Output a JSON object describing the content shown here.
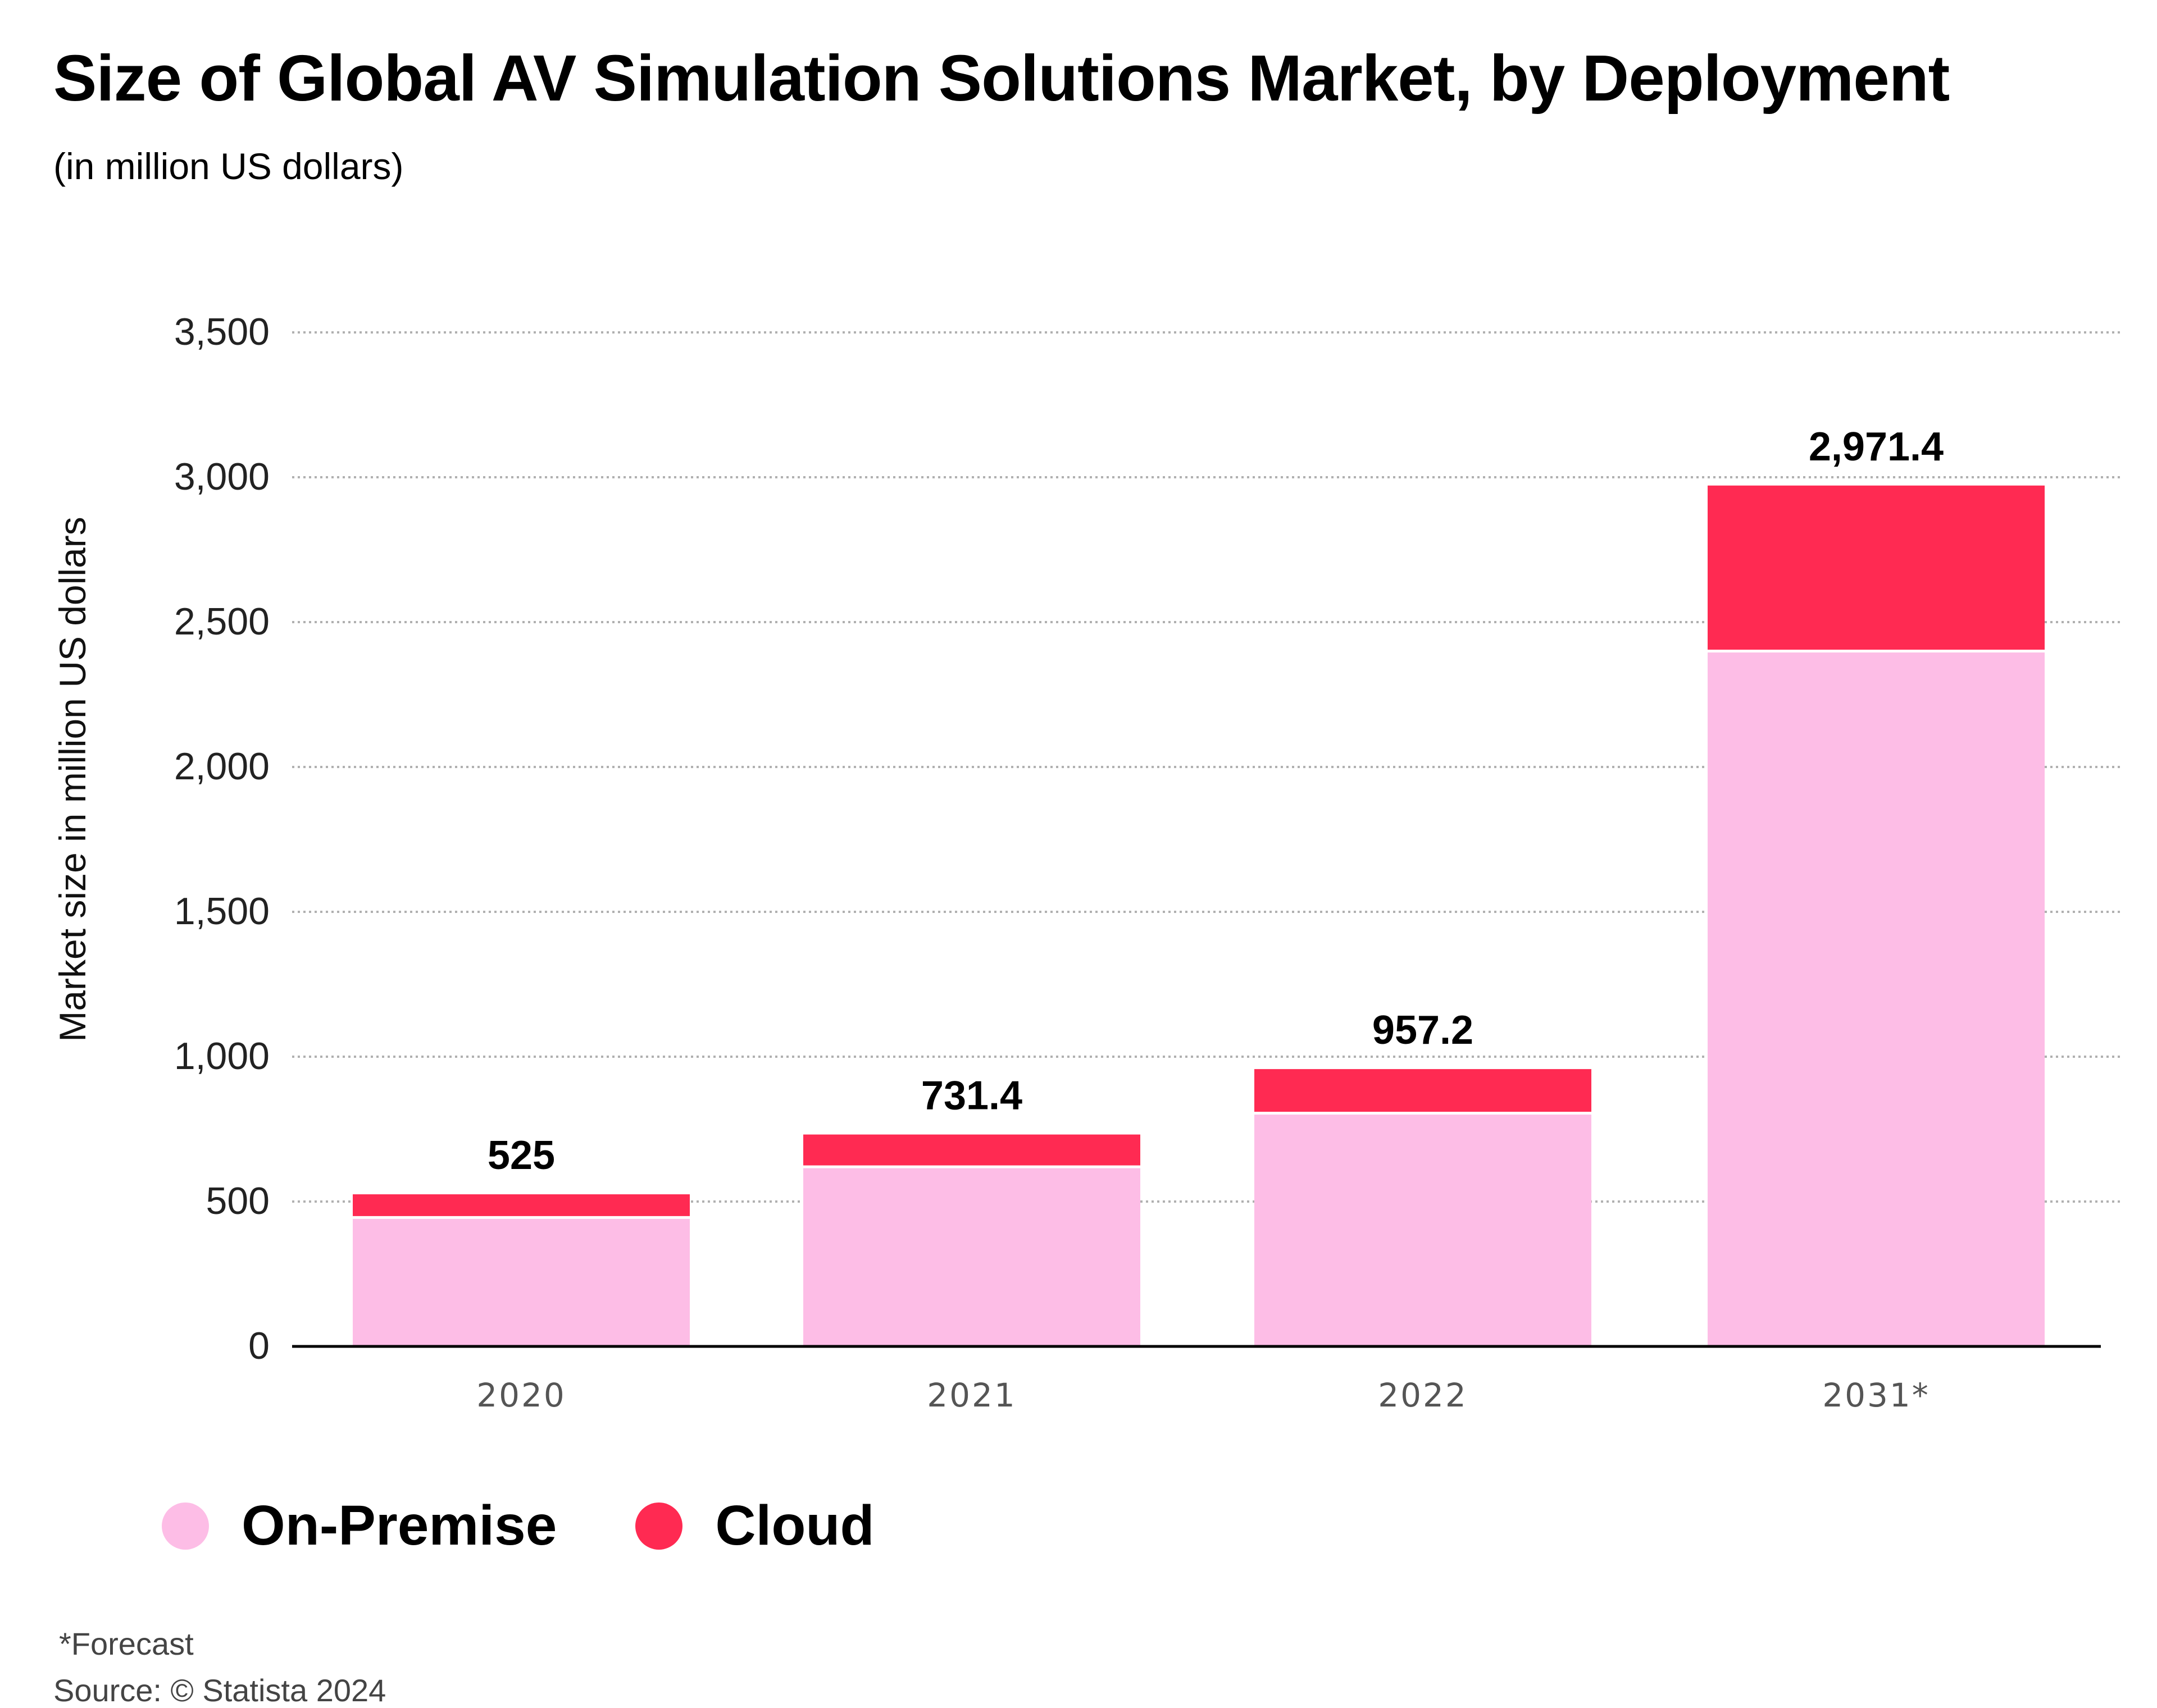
{
  "title": "Size of Global AV Simulation Solutions Market, by Deployment",
  "subtitle": "(in million US dollars)",
  "footnote": "*Forecast",
  "source": "Source: © Statista 2024",
  "colors": {
    "on_premise": "#fdbde6",
    "cloud": "#ff2a52",
    "grid": "#b0b0b0",
    "axis": "#000000"
  },
  "chart_data": {
    "type": "bar",
    "stacked": true,
    "categories": [
      "2020",
      "2021",
      "2022",
      "2031*"
    ],
    "series": [
      {
        "name": "On-Premise",
        "values": [
          445,
          620,
          805,
          2400
        ]
      },
      {
        "name": "Cloud",
        "values": [
          80,
          111.4,
          152.2,
          571.4
        ]
      }
    ],
    "totals": [
      525,
      731.4,
      957.2,
      2971.4
    ],
    "total_labels": [
      "525",
      "731.4",
      "957.2",
      "2,971.4"
    ],
    "ylabel": "Market size in million US dollars",
    "xlabel": "",
    "ylim": [
      0,
      3500
    ],
    "yticks": [
      0,
      500,
      1000,
      1500,
      2000,
      2500,
      3000,
      3500
    ],
    "ytick_labels": [
      "0",
      "500",
      "1,000",
      "1,500",
      "2,000",
      "2,500",
      "3,000",
      "3,500"
    ],
    "grid": true,
    "legend": "bottom-left"
  }
}
